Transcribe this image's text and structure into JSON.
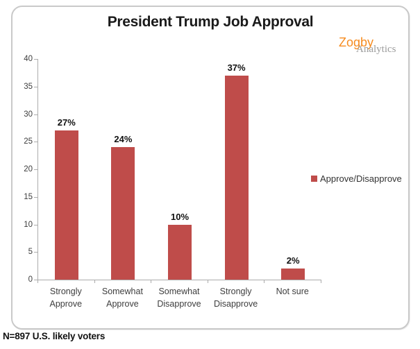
{
  "page": {
    "note": "N=897 U.S. likely voters"
  },
  "logo": {
    "word1": "Zogby",
    "word2": "Analytics",
    "word1_color": "#F68B1F",
    "word2_color": "#9C9C9C"
  },
  "chart_data": {
    "type": "bar",
    "title": "President Trump Job Approval",
    "categories": [
      "Strongly Approve",
      "Somewhat Approve",
      "Somewhat Disapprove",
      "Strongly Disapprove",
      "Not sure"
    ],
    "values": [
      27,
      24,
      10,
      37,
      2
    ],
    "data_labels": [
      "27%",
      "24%",
      "10%",
      "37%",
      "2%"
    ],
    "series_name": "Approve/Disapprove",
    "ylim": [
      0,
      40
    ],
    "ytick_step": 5,
    "ytick_labels": [
      "0",
      "5",
      "10",
      "15",
      "20",
      "25",
      "30",
      "35",
      "40"
    ],
    "bar_color": "#BF4C4A",
    "axis_color": "#ababab",
    "grid": false,
    "legend_position": "right"
  }
}
